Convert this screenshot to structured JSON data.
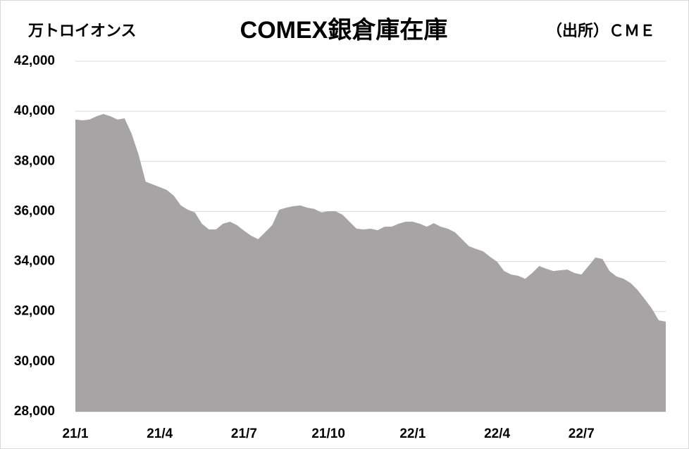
{
  "chart_data": {
    "type": "area",
    "title": "COMEX銀倉庫在庫",
    "y_label": "万トロイオンス",
    "source": "（出所）ＣＭＥ",
    "color": "#a6a4a4",
    "grid": true,
    "ylim": [
      28000,
      42000
    ],
    "yticks": [
      {
        "value": 28000,
        "label": "28,000"
      },
      {
        "value": 30000,
        "label": "30,000"
      },
      {
        "value": 32000,
        "label": "32,000"
      },
      {
        "value": 34000,
        "label": "34,000"
      },
      {
        "value": 36000,
        "label": "36,000"
      },
      {
        "value": 38000,
        "label": "38,000"
      },
      {
        "value": 40000,
        "label": "40,000"
      },
      {
        "value": 42000,
        "label": "42,000"
      }
    ],
    "categories": [
      "21/1",
      null,
      null,
      null,
      null,
      null,
      null,
      null,
      null,
      null,
      null,
      null,
      "21/4",
      null,
      null,
      null,
      null,
      null,
      null,
      null,
      null,
      null,
      null,
      null,
      "21/7",
      null,
      null,
      null,
      null,
      null,
      null,
      null,
      null,
      null,
      null,
      null,
      "21/10",
      null,
      null,
      null,
      null,
      null,
      null,
      null,
      null,
      null,
      null,
      null,
      "22/1",
      null,
      null,
      null,
      null,
      null,
      null,
      null,
      null,
      null,
      null,
      null,
      "22/4",
      null,
      null,
      null,
      null,
      null,
      null,
      null,
      null,
      null,
      null,
      null,
      "22/7",
      null,
      null,
      null,
      null,
      null,
      null,
      null,
      null,
      null,
      null,
      null,
      null
    ],
    "values": [
      39670,
      39640,
      39670,
      39800,
      39890,
      39800,
      39670,
      39720,
      39100,
      38260,
      37190,
      37080,
      36970,
      36860,
      36630,
      36240,
      36070,
      35960,
      35510,
      35280,
      35280,
      35510,
      35590,
      35450,
      35230,
      35030,
      34890,
      35170,
      35450,
      36070,
      36150,
      36210,
      36240,
      36150,
      36100,
      35960,
      36010,
      36010,
      35870,
      35590,
      35310,
      35280,
      35310,
      35250,
      35390,
      35390,
      35510,
      35590,
      35590,
      35510,
      35390,
      35530,
      35390,
      35310,
      35170,
      34890,
      34610,
      34500,
      34410,
      34190,
      33990,
      33620,
      33480,
      33430,
      33310,
      33540,
      33820,
      33710,
      33620,
      33650,
      33680,
      33540,
      33480,
      33820,
      34160,
      34100,
      33620,
      33400,
      33310,
      33140,
      32860,
      32500,
      32130,
      31650,
      31600
    ]
  }
}
